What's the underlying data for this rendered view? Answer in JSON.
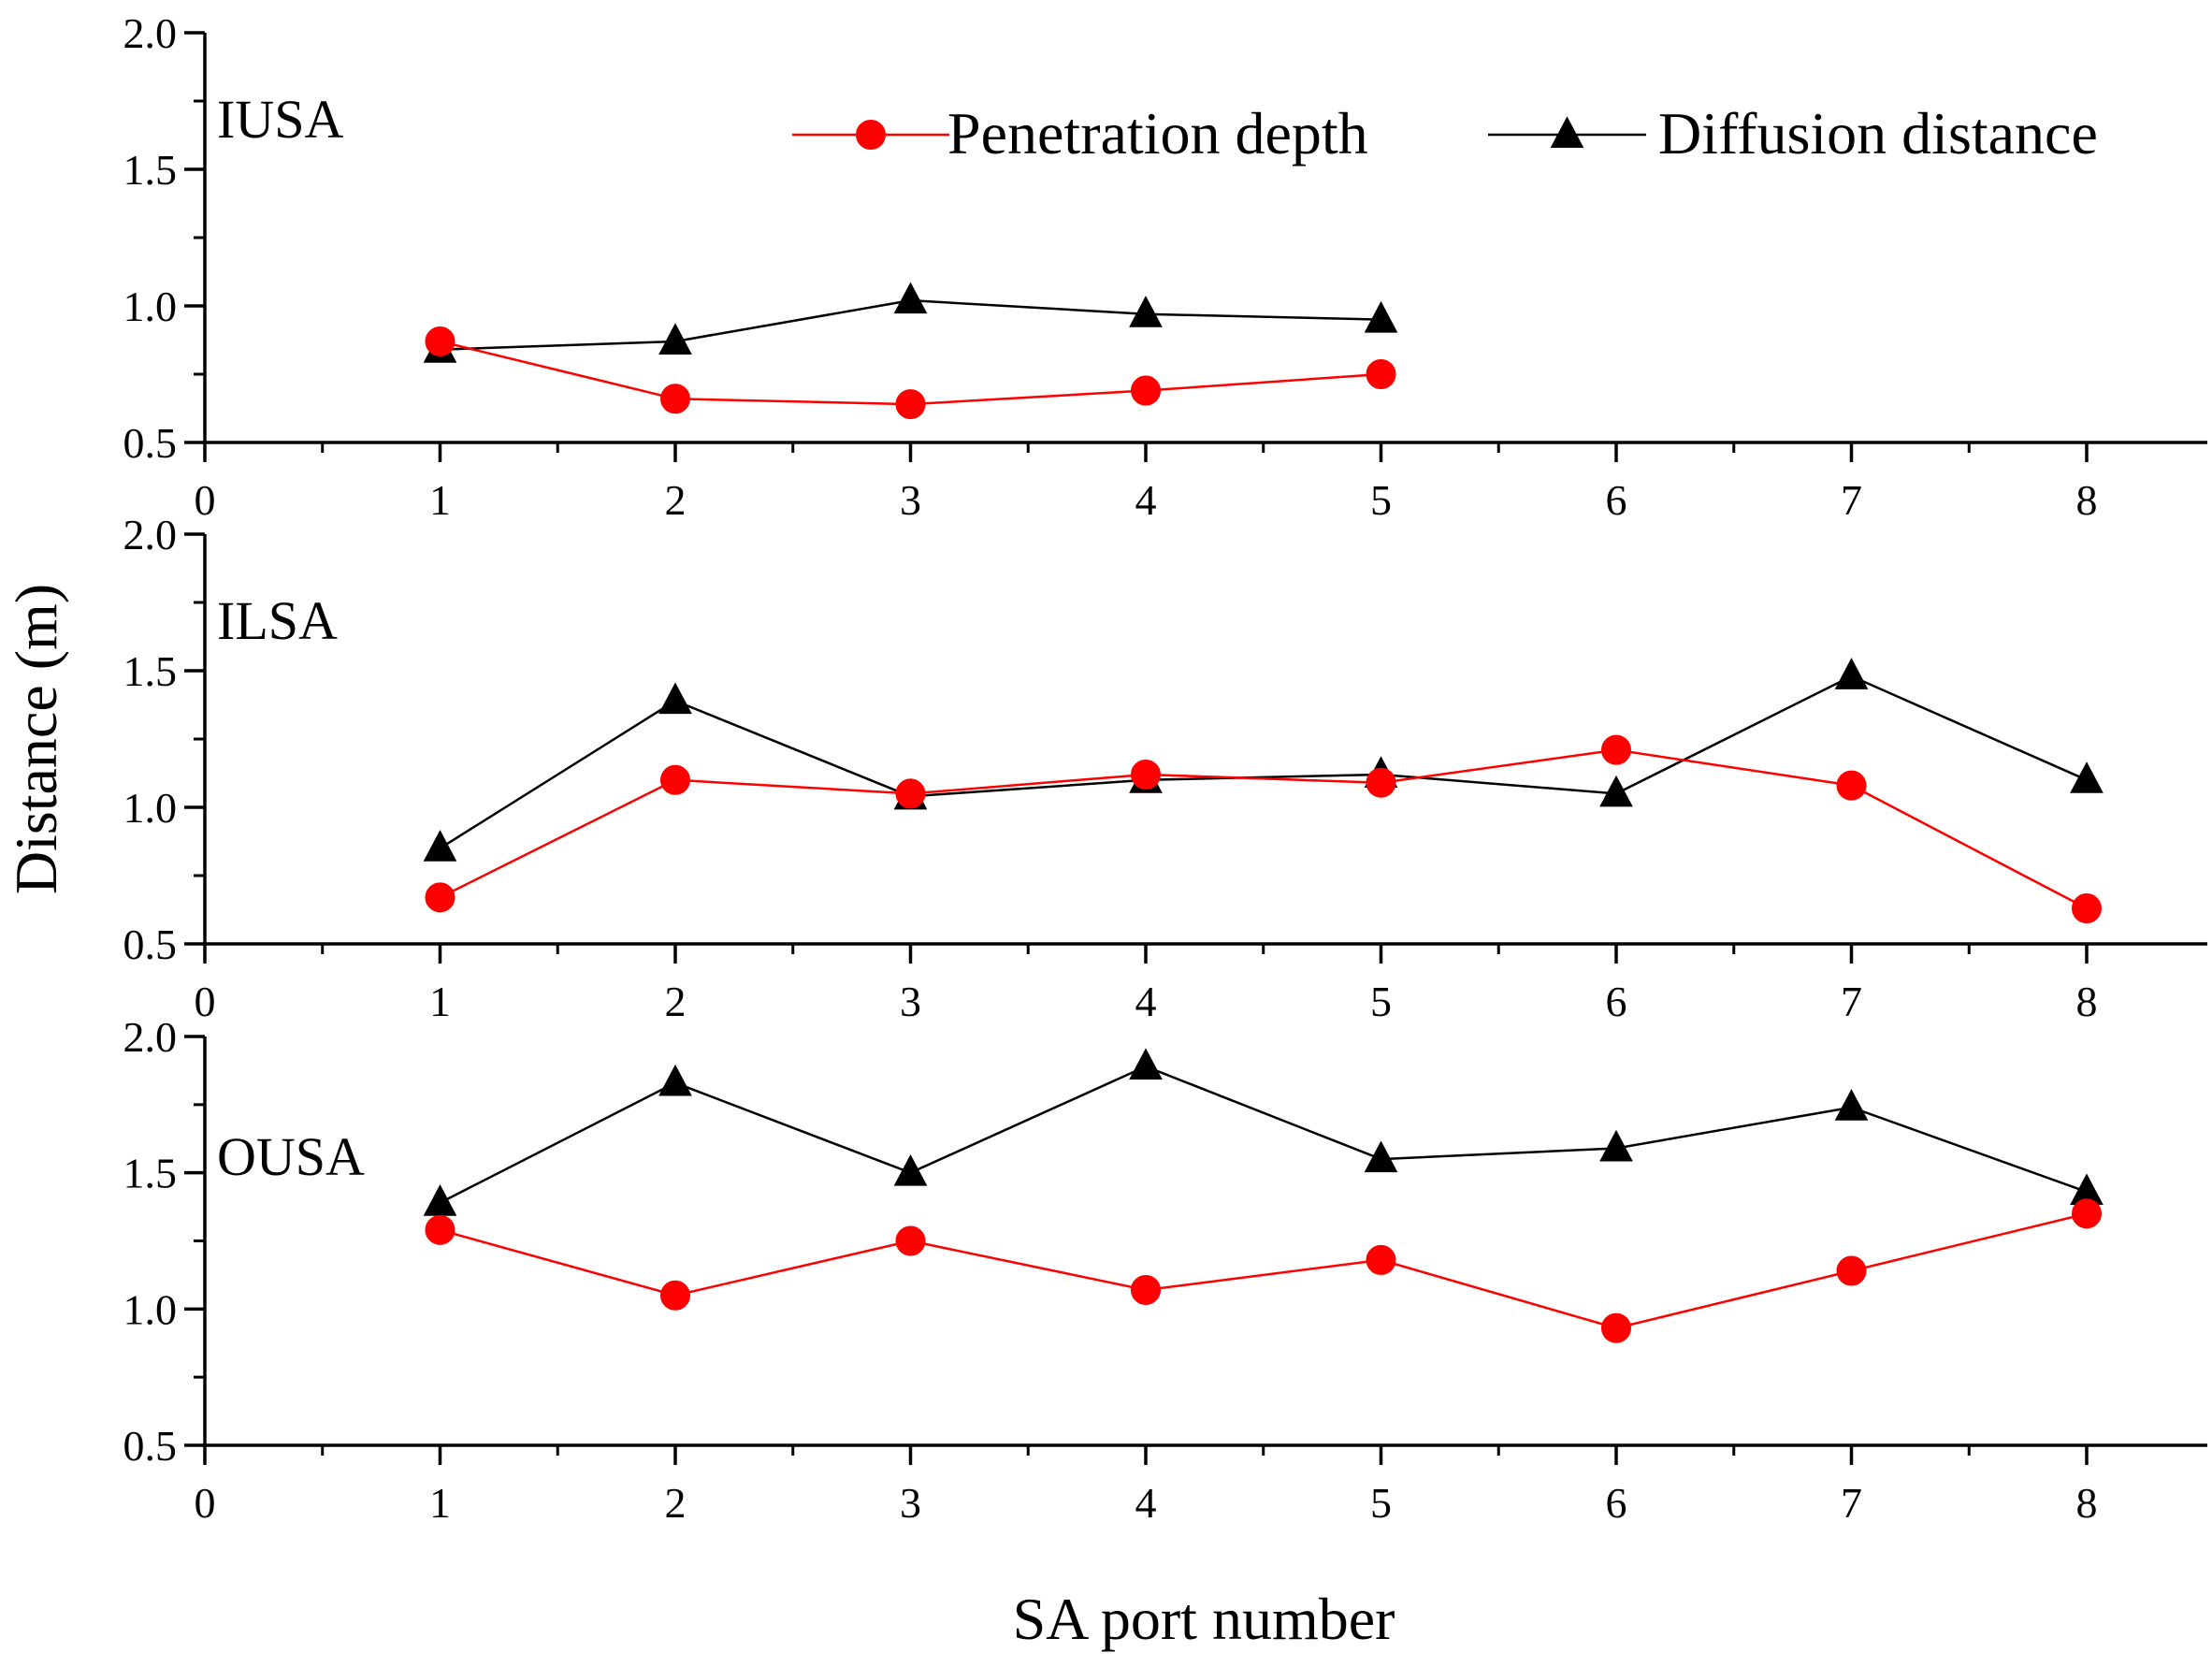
{
  "chart_data": {
    "type": "line",
    "xlabel": "SA port number",
    "ylabel": "Distance (m)",
    "xlim": [
      0,
      8.5
    ],
    "ylim": [
      0.5,
      2.0
    ],
    "x_ticks": [
      0,
      1,
      2,
      3,
      4,
      5,
      6,
      7,
      8
    ],
    "y_ticks": [
      0.5,
      1.0,
      1.5,
      2.0
    ],
    "y_tick_labels": [
      "0.5",
      "1.0",
      "1.5",
      "2.0"
    ],
    "legend": {
      "placement": "top-right of first panel",
      "entries": [
        {
          "name": "Penetration depth",
          "color": "#ff0000",
          "marker": "circle"
        },
        {
          "name": "Diffusion distance",
          "color": "#000000",
          "marker": "triangle"
        }
      ]
    },
    "panels": [
      {
        "label": "IUSA",
        "series": [
          {
            "name": "Penetration depth",
            "x": [
              1,
              2,
              3,
              4,
              5
            ],
            "values": [
              0.87,
              0.66,
              0.64,
              0.69,
              0.75
            ]
          },
          {
            "name": "Diffusion distance",
            "x": [
              1,
              2,
              3,
              4,
              5
            ],
            "values": [
              0.84,
              0.87,
              1.02,
              0.97,
              0.95
            ]
          }
        ]
      },
      {
        "label": "ILSA",
        "series": [
          {
            "name": "Penetration depth",
            "x": [
              1,
              2,
              3,
              4,
              5,
              6,
              7,
              8
            ],
            "values": [
              0.67,
              1.1,
              1.05,
              1.12,
              1.09,
              1.21,
              1.08,
              0.63
            ]
          },
          {
            "name": "Diffusion distance",
            "x": [
              1,
              2,
              3,
              4,
              5,
              6,
              7,
              8
            ],
            "values": [
              0.85,
              1.39,
              1.04,
              1.1,
              1.12,
              1.05,
              1.48,
              1.1
            ]
          }
        ]
      },
      {
        "label": "OUSA",
        "series": [
          {
            "name": "Penetration depth",
            "x": [
              1,
              2,
              3,
              4,
              5,
              6,
              7,
              8
            ],
            "values": [
              1.29,
              1.05,
              1.25,
              1.07,
              1.18,
              0.93,
              1.14,
              1.35
            ]
          },
          {
            "name": "Diffusion distance",
            "x": [
              1,
              2,
              3,
              4,
              5,
              6,
              7,
              8
            ],
            "values": [
              1.39,
              1.83,
              1.5,
              1.89,
              1.55,
              1.59,
              1.74,
              1.43
            ]
          }
        ]
      }
    ]
  }
}
